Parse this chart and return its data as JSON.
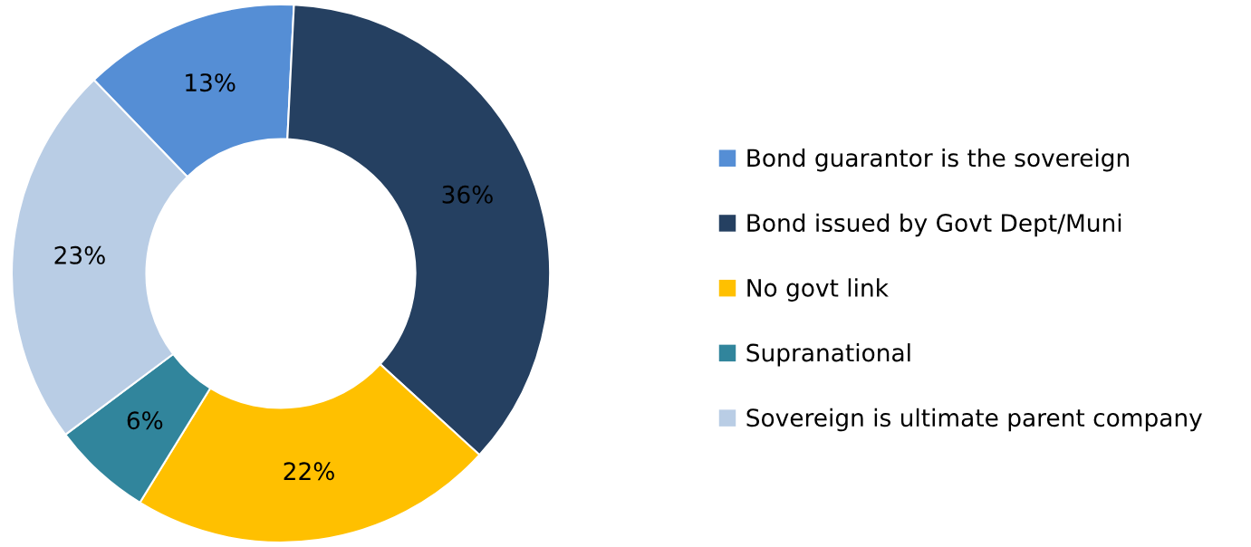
{
  "chart_data": {
    "type": "donut",
    "categories": [
      "Bond guarantor is the sovereign",
      "Bond issued by Govt Dept/Muni",
      "No govt link",
      "Supranational",
      "Sovereign is ultimate parent company"
    ],
    "values": [
      13,
      36,
      22,
      6,
      23
    ],
    "colors": [
      "#558ed5",
      "#254061",
      "#ffc000",
      "#31859c",
      "#b9cde5"
    ],
    "value_labels": [
      "13%",
      "36%",
      "22%",
      "6%",
      "23%"
    ],
    "legend": "right"
  }
}
